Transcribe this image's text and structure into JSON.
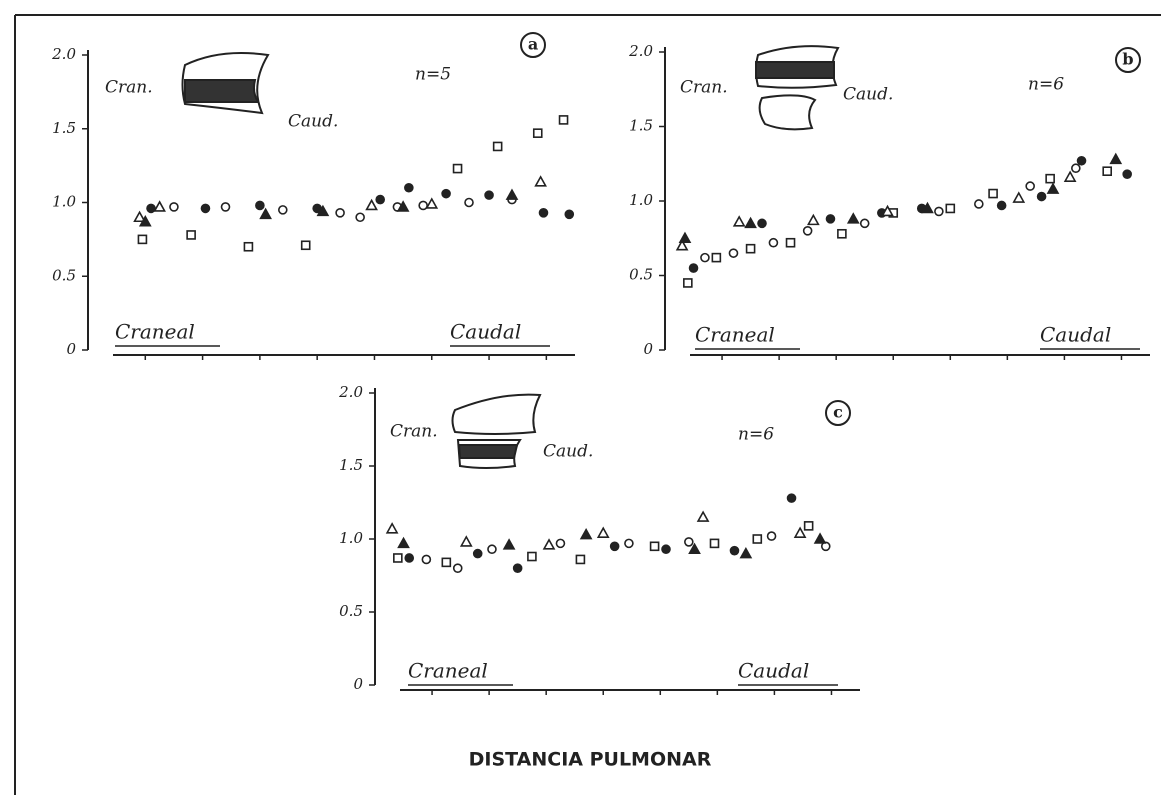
{
  "chart_data": [
    {
      "type": "scatter",
      "panel": "a",
      "cranial_label": "Cran.",
      "caudal_label": "Caud.",
      "n_label": "n=5",
      "axis_start_label": "Craneal",
      "axis_end_label": "Caudal",
      "xlim": [
        0,
        17
      ],
      "ylim": [
        0,
        2
      ],
      "yticks": [
        0,
        {
          "value": 0.5,
          "label": "0.5"
        },
        {
          "value": 1,
          "label": "1.0"
        },
        1.5,
        {
          "value": 2,
          "label": "2.0"
        }
      ],
      "series": [
        {
          "marker": "square-open",
          "color": "#222222",
          "x": [
            1.9,
            3.6,
            5.6,
            7.6,
            12.9,
            14.3,
            15.7,
            16.6
          ],
          "values": [
            0.75,
            0.78,
            0.7,
            0.71,
            1.23,
            1.38,
            1.47,
            1.56
          ]
        },
        {
          "marker": "circle-filled",
          "color": "#222222",
          "x": [
            2.2,
            4.1,
            6.0,
            8.0,
            10.2,
            11.2,
            12.5,
            14.0,
            15.9,
            16.8
          ],
          "values": [
            0.96,
            0.96,
            0.98,
            0.96,
            1.02,
            1.1,
            1.06,
            1.05,
            0.93,
            0.92
          ]
        },
        {
          "marker": "circle-open",
          "color": "#222222",
          "x": [
            3.0,
            4.8,
            6.8,
            8.8,
            9.5,
            10.8,
            11.7,
            13.3,
            14.8
          ],
          "values": [
            0.97,
            0.97,
            0.95,
            0.93,
            0.9,
            0.97,
            0.98,
            1.0,
            1.02
          ]
        },
        {
          "marker": "triangle-open",
          "color": "#222222",
          "x": [
            1.8,
            2.5,
            9.9,
            12.0,
            15.8
          ],
          "values": [
            0.9,
            0.97,
            0.98,
            0.99,
            1.14
          ]
        },
        {
          "marker": "triangle-filled",
          "color": "#222222",
          "x": [
            2.0,
            6.2,
            8.2,
            11.0,
            14.8
          ],
          "values": [
            0.87,
            0.92,
            0.94,
            0.97,
            1.05
          ]
        }
      ]
    },
    {
      "type": "scatter",
      "panel": "b",
      "cranial_label": "Cran.",
      "caudal_label": "Caud.",
      "n_label": "n=6",
      "axis_start_label": "Craneal",
      "axis_end_label": "Caudal",
      "xlim": [
        0,
        17
      ],
      "ylim": [
        0,
        2
      ],
      "yticks": [
        0,
        {
          "value": 0.5,
          "label": "0.5"
        },
        {
          "value": 1,
          "label": "1.0"
        },
        1.5,
        {
          "value": 2,
          "label": "2.0"
        }
      ],
      "series": [
        {
          "marker": "square-open",
          "color": "#222222",
          "x": [
            0.8,
            1.8,
            3.0,
            4.4,
            6.2,
            8.0,
            10.0,
            11.5,
            13.5,
            15.5
          ],
          "values": [
            0.45,
            0.62,
            0.68,
            0.72,
            0.78,
            0.92,
            0.95,
            1.05,
            1.15,
            1.2
          ]
        },
        {
          "marker": "circle-filled",
          "color": "#222222",
          "x": [
            1.0,
            3.4,
            5.8,
            7.6,
            9.0,
            11.8,
            13.2,
            14.6,
            16.2
          ],
          "values": [
            0.55,
            0.85,
            0.88,
            0.92,
            0.95,
            0.97,
            1.03,
            1.27,
            1.18
          ]
        },
        {
          "marker": "circle-open",
          "color": "#222222",
          "x": [
            1.4,
            2.4,
            3.8,
            5.0,
            7.0,
            9.6,
            11.0,
            12.8,
            14.4
          ],
          "values": [
            0.62,
            0.65,
            0.72,
            0.8,
            0.85,
            0.93,
            0.98,
            1.1,
            1.22
          ]
        },
        {
          "marker": "triangle-open",
          "color": "#222222",
          "x": [
            0.6,
            2.6,
            5.2,
            7.8,
            12.4,
            14.2
          ],
          "values": [
            0.7,
            0.86,
            0.87,
            0.93,
            1.02,
            1.16
          ]
        },
        {
          "marker": "triangle-filled",
          "color": "#222222",
          "x": [
            0.7,
            3.0,
            6.6,
            9.2,
            13.6,
            15.8
          ],
          "values": [
            0.75,
            0.85,
            0.88,
            0.95,
            1.08,
            1.28
          ]
        }
      ]
    },
    {
      "type": "scatter",
      "panel": "c",
      "cranial_label": "Cran.",
      "caudal_label": "Caud.",
      "n_label": "n=6",
      "axis_start_label": "Craneal",
      "axis_end_label": "Caudal",
      "x_label": "DISTANCIA PULMONAR",
      "xlim": [
        0,
        17
      ],
      "ylim": [
        0,
        2
      ],
      "yticks": [
        0,
        {
          "value": 0.5,
          "label": "0.5"
        },
        {
          "value": 1,
          "label": "1.0"
        },
        1.5,
        {
          "value": 2,
          "label": "2.0"
        }
      ],
      "series": [
        {
          "marker": "square-open",
          "color": "#222222",
          "x": [
            0.8,
            2.5,
            5.5,
            7.2,
            9.8,
            11.9,
            13.4,
            15.2
          ],
          "values": [
            0.87,
            0.84,
            0.88,
            0.86,
            0.95,
            0.97,
            1.0,
            1.09
          ]
        },
        {
          "marker": "circle-filled",
          "color": "#222222",
          "x": [
            1.2,
            3.6,
            5.0,
            8.4,
            10.2,
            12.6,
            14.6
          ],
          "values": [
            0.87,
            0.9,
            0.8,
            0.95,
            0.93,
            0.92,
            1.28
          ]
        },
        {
          "marker": "circle-open",
          "color": "#222222",
          "x": [
            1.8,
            2.9,
            4.1,
            6.5,
            8.9,
            11.0,
            13.9,
            15.8
          ],
          "values": [
            0.86,
            0.8,
            0.93,
            0.97,
            0.97,
            0.98,
            1.02,
            0.95
          ]
        },
        {
          "marker": "triangle-open",
          "color": "#222222",
          "x": [
            0.6,
            3.2,
            6.1,
            8.0,
            11.5,
            14.9
          ],
          "values": [
            1.07,
            0.98,
            0.96,
            1.04,
            1.15,
            1.04
          ]
        },
        {
          "marker": "triangle-filled",
          "color": "#222222",
          "x": [
            1.0,
            4.7,
            7.4,
            11.2,
            13.0,
            15.6
          ],
          "values": [
            0.97,
            0.96,
            1.03,
            0.93,
            0.9,
            1.0
          ]
        }
      ]
    }
  ]
}
